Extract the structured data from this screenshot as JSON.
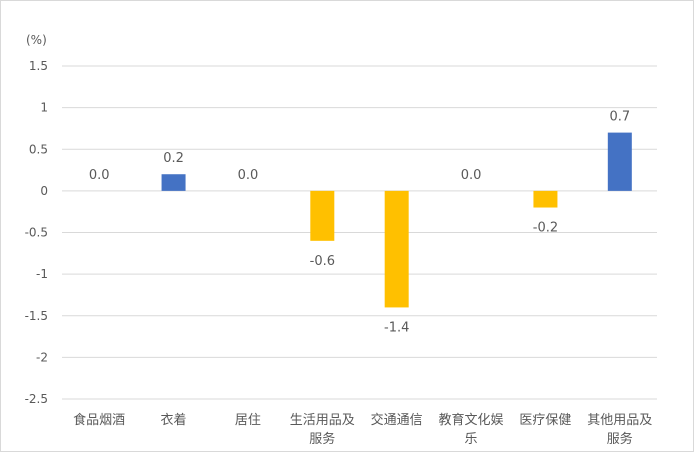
{
  "chart_data": {
    "type": "bar",
    "unit_label": "(%)",
    "categories": [
      [
        "食品烟酒"
      ],
      [
        "衣着"
      ],
      [
        "居住"
      ],
      [
        "生活用品及",
        "服务"
      ],
      [
        "交通通信"
      ],
      [
        "教育文化娱",
        "乐"
      ],
      [
        "医疗保健"
      ],
      [
        "其他用品及",
        "服务"
      ]
    ],
    "values": [
      0.0,
      0.2,
      0.0,
      -0.6,
      -1.4,
      0.0,
      -0.2,
      0.7
    ],
    "data_labels": [
      "0.0",
      "0.2",
      "0.0",
      "-0.6",
      "-1.4",
      "0.0",
      "-0.2",
      "0.7"
    ],
    "y_ticks": [
      1.5,
      1,
      0.5,
      0,
      -0.5,
      -1,
      -1.5,
      -2,
      -2.5
    ],
    "y_tick_labels": [
      "1.5",
      "1",
      "0.5",
      "0",
      "-0.5",
      "-1",
      "-1.5",
      "-2",
      "-2.5"
    ],
    "ylim": [
      -2.5,
      1.5
    ],
    "grid": true,
    "legend": "none",
    "colors": {
      "positive": "#4472C4",
      "negative": "#FFC000",
      "grid": "#d9d9d9",
      "text": "#595959"
    }
  }
}
